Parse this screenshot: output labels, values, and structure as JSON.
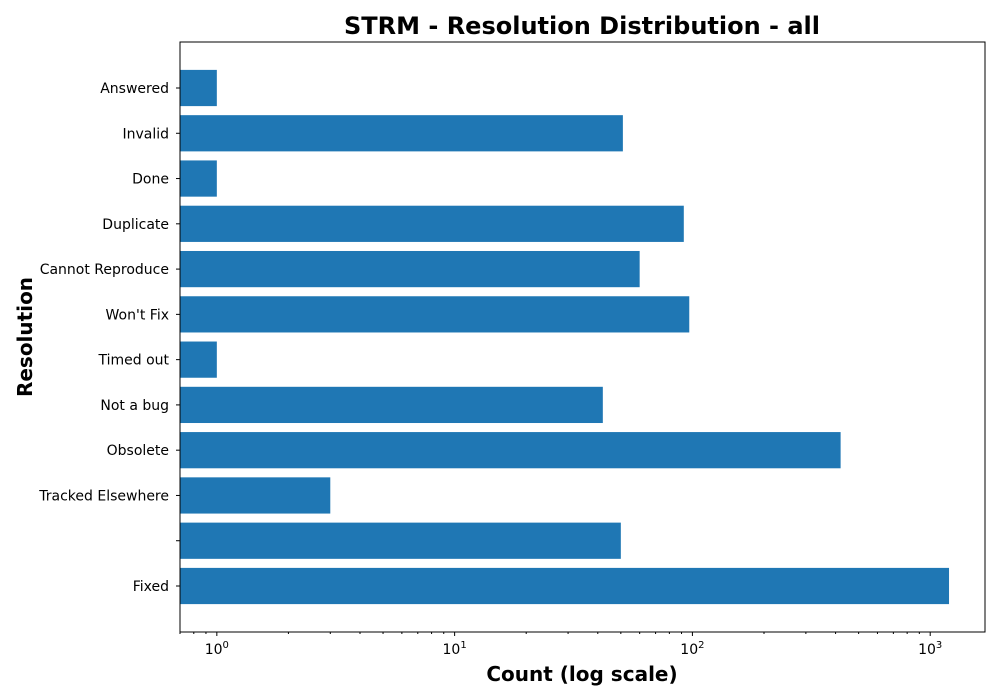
{
  "chart_data": {
    "type": "bar",
    "orientation": "horizontal",
    "title": "STRM - Resolution Distribution - all",
    "xlabel": "Count (log scale)",
    "ylabel": "Resolution",
    "x_scale": "log",
    "xlim": [
      0.7,
      1700
    ],
    "x_ticks": [
      {
        "value": 1,
        "base": "10",
        "exp": "0"
      },
      {
        "value": 10,
        "base": "10",
        "exp": "1"
      },
      {
        "value": 100,
        "base": "10",
        "exp": "2"
      },
      {
        "value": 1000,
        "base": "10",
        "exp": "3"
      }
    ],
    "categories": [
      "Fixed",
      "",
      "Tracked Elsewhere",
      "Obsolete",
      "Not a bug",
      "Timed out",
      "Won't Fix",
      "Cannot Reproduce",
      "Duplicate",
      "Done",
      "Invalid",
      "Answered"
    ],
    "values": [
      1200,
      50,
      3,
      420,
      42,
      1,
      97,
      60,
      92,
      1,
      51,
      1
    ],
    "bar_color": "#1f77b4",
    "grid": false,
    "legend": "none"
  }
}
